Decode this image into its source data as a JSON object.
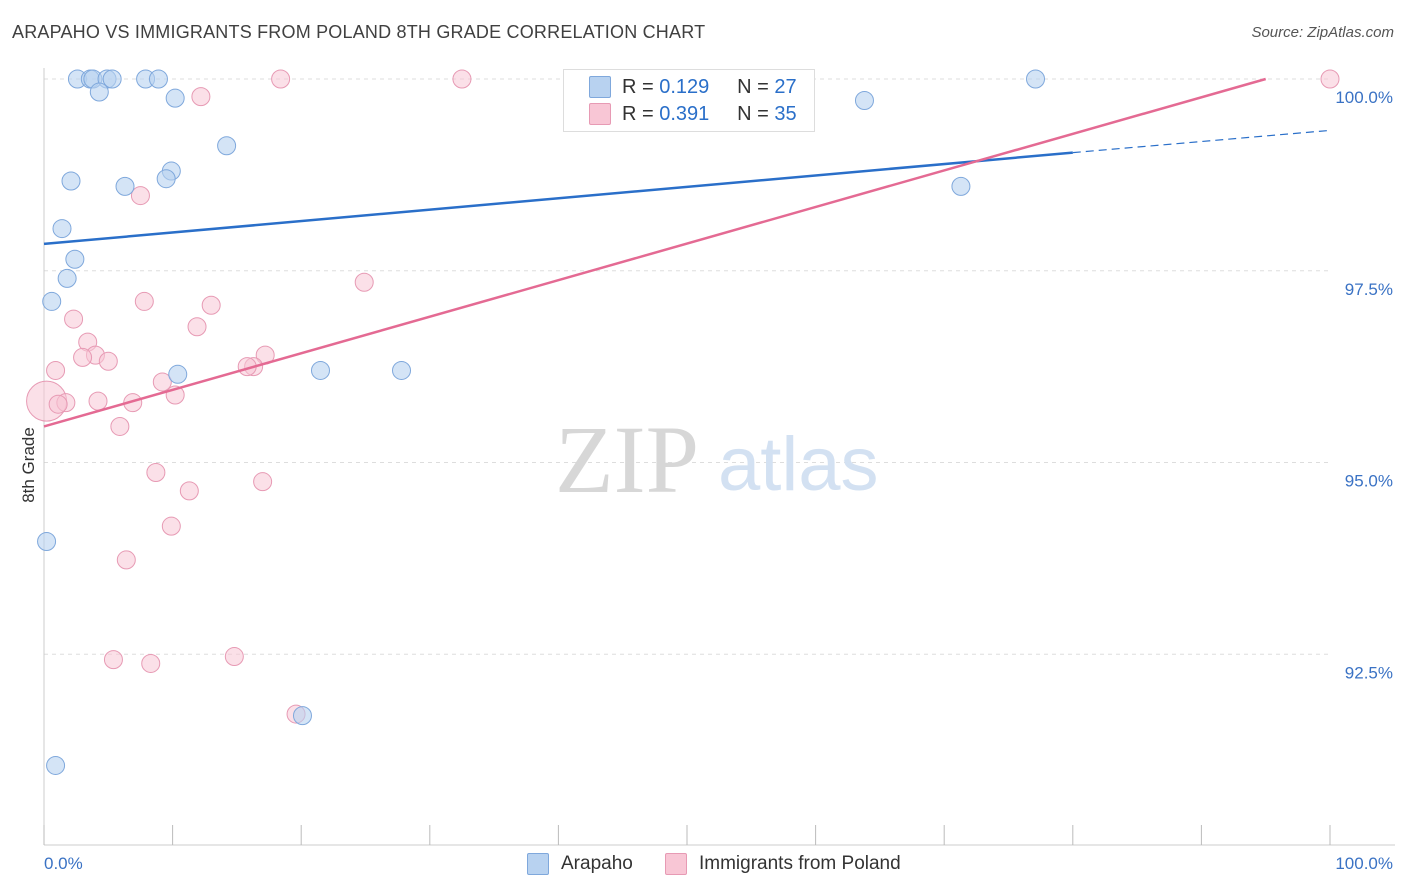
{
  "title": "ARAPAHO VS IMMIGRANTS FROM POLAND 8TH GRADE CORRELATION CHART",
  "source": "Source: ZipAtlas.com",
  "watermark": {
    "zip": "ZIP",
    "atlas": "atlas"
  },
  "legend_stats": [
    {
      "r_label": "R =",
      "r_value": "0.129",
      "n_label": "N =",
      "n_value": "27"
    },
    {
      "r_label": "R =",
      "r_value": "0.391",
      "n_label": "N =",
      "n_value": "35"
    }
  ],
  "legend": [
    "Arapaho",
    "Immigrants from Poland"
  ],
  "colors": {
    "arapaho_fill": "#b8d2f0",
    "arapaho_stroke": "#7fa8dc",
    "arapaho_line": "#2a6fc9",
    "poland_fill": "#f8c6d5",
    "poland_stroke": "#e79ab4",
    "poland_line": "#e46a93",
    "tick_label": "#3a72c4",
    "grid": "#dddddd"
  },
  "chart_data": {
    "type": "scatter",
    "title": "ARAPAHO VS IMMIGRANTS FROM POLAND 8TH GRADE CORRELATION CHART",
    "xlabel": "",
    "ylabel": "8th Grade",
    "xlim": [
      0,
      100
    ],
    "ylim": [
      90.0,
      100.2
    ],
    "x_tick_labels": [
      "0.0%",
      "100.0%"
    ],
    "y_ticks": [
      92.5,
      95.0,
      97.5,
      100.0
    ],
    "y_tick_labels": [
      "92.5%",
      "95.0%",
      "97.5%",
      "100.0%"
    ],
    "grid": true,
    "legend_position": "bottom",
    "series": [
      {
        "name": "Arapaho",
        "r": 0.129,
        "n": 27,
        "points": [
          [
            2.6,
            100.0
          ],
          [
            3.6,
            100.0
          ],
          [
            3.8,
            100.0
          ],
          [
            4.9,
            100.0
          ],
          [
            5.3,
            100.0
          ],
          [
            7.9,
            100.0
          ],
          [
            8.9,
            100.0
          ],
          [
            4.3,
            99.83
          ],
          [
            10.2,
            99.75
          ],
          [
            14.2,
            99.13
          ],
          [
            9.9,
            98.8
          ],
          [
            9.5,
            98.7
          ],
          [
            2.1,
            98.67
          ],
          [
            6.3,
            98.6
          ],
          [
            1.4,
            98.05
          ],
          [
            2.4,
            97.65
          ],
          [
            1.8,
            97.4
          ],
          [
            0.6,
            97.1
          ],
          [
            10.4,
            96.15
          ],
          [
            21.5,
            96.2
          ],
          [
            27.8,
            96.2
          ],
          [
            0.2,
            93.97
          ],
          [
            20.1,
            91.7
          ],
          [
            0.9,
            91.05
          ],
          [
            63.8,
            99.72
          ],
          [
            77.1,
            100.0
          ],
          [
            71.3,
            98.6
          ]
        ],
        "trendline": {
          "x": [
            0,
            80
          ],
          "y": [
            97.85,
            99.04
          ],
          "extension": {
            "x": [
              80,
              100
            ],
            "y": [
              99.04,
              99.33
            ]
          }
        }
      },
      {
        "name": "Immigrants from Poland",
        "r": 0.391,
        "n": 35,
        "points": [
          [
            18.4,
            100.0
          ],
          [
            32.5,
            100.0
          ],
          [
            100.0,
            100.0
          ],
          [
            12.2,
            99.77
          ],
          [
            7.5,
            98.48
          ],
          [
            24.9,
            97.35
          ],
          [
            7.8,
            97.1
          ],
          [
            13.0,
            97.05
          ],
          [
            2.3,
            96.87
          ],
          [
            11.9,
            96.77
          ],
          [
            3.4,
            96.57
          ],
          [
            4.0,
            96.4
          ],
          [
            3.0,
            96.37
          ],
          [
            5.0,
            96.32
          ],
          [
            17.2,
            96.4
          ],
          [
            16.3,
            96.25
          ],
          [
            15.8,
            96.25
          ],
          [
            0.9,
            96.2
          ],
          [
            9.2,
            96.05
          ],
          [
            10.2,
            95.88
          ],
          [
            0.2,
            95.8
          ],
          [
            1.7,
            95.78
          ],
          [
            1.1,
            95.76
          ],
          [
            4.2,
            95.8
          ],
          [
            6.9,
            95.78
          ],
          [
            5.9,
            95.47
          ],
          [
            8.7,
            94.87
          ],
          [
            11.3,
            94.63
          ],
          [
            17.0,
            94.75
          ],
          [
            9.9,
            94.17
          ],
          [
            6.4,
            93.73
          ],
          [
            5.4,
            92.43
          ],
          [
            8.3,
            92.38
          ],
          [
            14.8,
            92.47
          ],
          [
            19.6,
            91.72
          ]
        ],
        "trendline": {
          "x": [
            0,
            95
          ],
          "y": [
            95.47,
            100.0
          ]
        }
      }
    ]
  }
}
